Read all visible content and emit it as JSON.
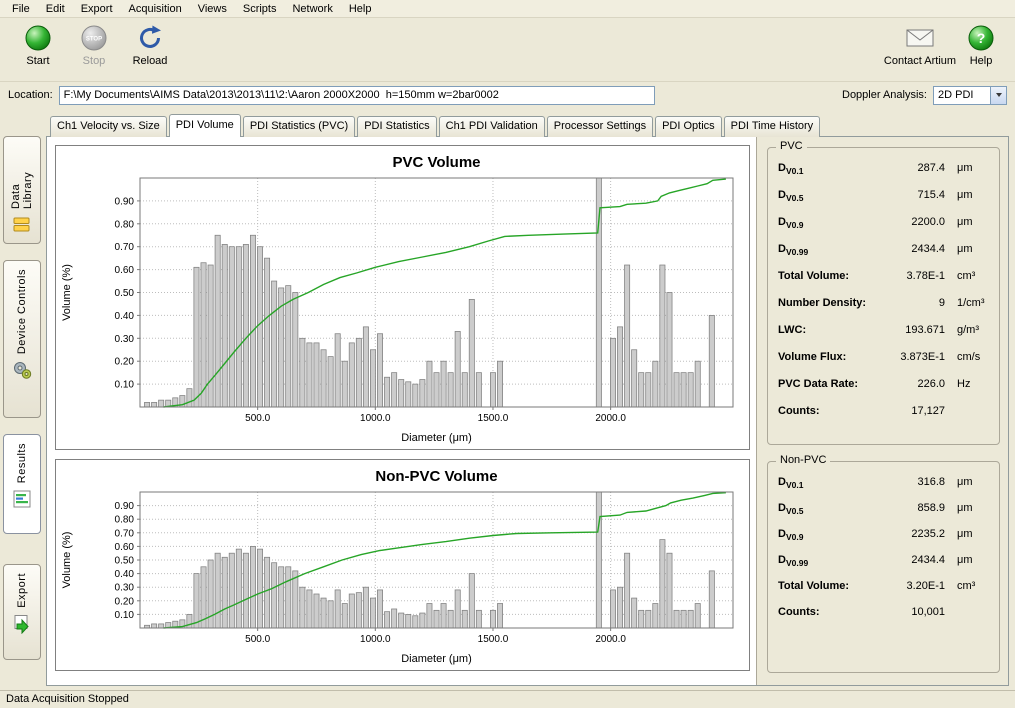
{
  "menu": {
    "items": [
      "File",
      "Edit",
      "Export",
      "Acquisition",
      "Views",
      "Scripts",
      "Network",
      "Help"
    ]
  },
  "toolbar": {
    "start_label": "Start",
    "stop_label": "Stop",
    "stop_icon_text": "STOP",
    "reload_label": "Reload",
    "contact_label": "Contact Artium",
    "help_label": "Help",
    "help_icon_text": "?"
  },
  "location": {
    "label": "Location:",
    "value": "F:\\My Documents\\AIMS Data\\2013\\2013\\11\\2:\\Aaron 2000X2000  h=150mm w=2bar0002"
  },
  "doppler": {
    "label": "Doppler Analysis:",
    "value": "2D PDI"
  },
  "side_tabs": [
    {
      "label": "Data Library"
    },
    {
      "label": "Device Controls"
    },
    {
      "label": "Results"
    },
    {
      "label": "Export"
    }
  ],
  "tabs": [
    "Ch1 Velocity vs. Size",
    "PDI Volume",
    "PDI Statistics (PVC)",
    "PDI Statistics",
    "Ch1 PDI Validation",
    "Processor Settings",
    "PDI Optics",
    "PDI Time History"
  ],
  "active_tab": "PDI Volume",
  "stats": {
    "pvc": {
      "title": "PVC",
      "rows": [
        {
          "main": "D",
          "sub": "V0.1",
          "value": "287.4",
          "unit": "μm"
        },
        {
          "main": "D",
          "sub": "V0.5",
          "value": "715.4",
          "unit": "μm"
        },
        {
          "main": "D",
          "sub": "V0.9",
          "value": "2200.0",
          "unit": "μm"
        },
        {
          "main": "D",
          "sub": "V0.99",
          "value": "2434.4",
          "unit": "μm"
        },
        {
          "main": "Total Volume:",
          "sub": "",
          "value": "3.78E-1",
          "unit": "cm³"
        },
        {
          "main": "Number Density:",
          "sub": "",
          "value": "9",
          "unit": "1/cm³"
        },
        {
          "main": "LWC:",
          "sub": "",
          "value": "193.671",
          "unit": "g/m³"
        },
        {
          "main": "Volume Flux:",
          "sub": "",
          "value": "3.873E-1",
          "unit": "cm/s"
        },
        {
          "main": "PVC Data Rate:",
          "sub": "",
          "value": "226.0",
          "unit": "Hz"
        },
        {
          "main": "Counts:",
          "sub": "",
          "value": "17,127",
          "unit": ""
        }
      ]
    },
    "nonpvc": {
      "title": "Non-PVC",
      "rows": [
        {
          "main": "D",
          "sub": "V0.1",
          "value": "316.8",
          "unit": "μm"
        },
        {
          "main": "D",
          "sub": "V0.5",
          "value": "858.9",
          "unit": "μm"
        },
        {
          "main": "D",
          "sub": "V0.9",
          "value": "2235.2",
          "unit": "μm"
        },
        {
          "main": "D",
          "sub": "V0.99",
          "value": "2434.4",
          "unit": "μm"
        },
        {
          "main": "Total Volume:",
          "sub": "",
          "value": "3.20E-1",
          "unit": "cm³"
        },
        {
          "main": "Counts:",
          "sub": "",
          "value": "10,001",
          "unit": ""
        }
      ]
    }
  },
  "status": "Data Acquisition Stopped",
  "chart_data": [
    {
      "type": "bar",
      "title": "PVC Volume",
      "xlabel": "Diameter (μm)",
      "ylabel": "Volume (%)",
      "xlim": [
        0,
        2520
      ],
      "ylim": [
        0,
        1.0
      ],
      "xticks": [
        [
          500,
          "500.0"
        ],
        [
          1000,
          "1000.0"
        ],
        [
          1500,
          "1500.0"
        ],
        [
          2000,
          "2000.0"
        ]
      ],
      "yticks": [
        [
          0.1,
          "0.10"
        ],
        [
          0.2,
          "0.20"
        ],
        [
          0.3,
          "0.30"
        ],
        [
          0.4,
          "0.40"
        ],
        [
          0.5,
          "0.50"
        ],
        [
          0.6,
          "0.60"
        ],
        [
          0.7,
          "0.70"
        ],
        [
          0.8,
          "0.80"
        ],
        [
          0.9,
          "0.90"
        ]
      ],
      "grid": true,
      "legend": "none",
      "bar_color": "#cccccc",
      "bar_edge": "#7f7f7f",
      "line_color": "#27a527",
      "bars": [
        [
          30,
          0.02
        ],
        [
          60,
          0.02
        ],
        [
          90,
          0.03
        ],
        [
          120,
          0.03
        ],
        [
          150,
          0.04
        ],
        [
          180,
          0.05
        ],
        [
          210,
          0.08
        ],
        [
          240,
          0.61
        ],
        [
          270,
          0.63
        ],
        [
          300,
          0.62
        ],
        [
          330,
          0.75
        ],
        [
          360,
          0.71
        ],
        [
          390,
          0.7
        ],
        [
          420,
          0.7
        ],
        [
          450,
          0.71
        ],
        [
          480,
          0.75
        ],
        [
          510,
          0.7
        ],
        [
          540,
          0.65
        ],
        [
          570,
          0.55
        ],
        [
          600,
          0.52
        ],
        [
          630,
          0.53
        ],
        [
          660,
          0.5
        ],
        [
          690,
          0.3
        ],
        [
          720,
          0.28
        ],
        [
          750,
          0.28
        ],
        [
          780,
          0.25
        ],
        [
          810,
          0.22
        ],
        [
          840,
          0.32
        ],
        [
          870,
          0.2
        ],
        [
          900,
          0.28
        ],
        [
          930,
          0.3
        ],
        [
          960,
          0.35
        ],
        [
          990,
          0.25
        ],
        [
          1020,
          0.32
        ],
        [
          1050,
          0.13
        ],
        [
          1080,
          0.15
        ],
        [
          1110,
          0.12
        ],
        [
          1140,
          0.11
        ],
        [
          1170,
          0.1
        ],
        [
          1200,
          0.12
        ],
        [
          1230,
          0.2
        ],
        [
          1260,
          0.15
        ],
        [
          1290,
          0.2
        ],
        [
          1320,
          0.15
        ],
        [
          1350,
          0.33
        ],
        [
          1380,
          0.15
        ],
        [
          1410,
          0.47
        ],
        [
          1440,
          0.15
        ],
        [
          1500,
          0.15
        ],
        [
          1530,
          0.2
        ],
        [
          1950,
          1.0
        ],
        [
          2010,
          0.3
        ],
        [
          2040,
          0.35
        ],
        [
          2070,
          0.62
        ],
        [
          2100,
          0.25
        ],
        [
          2130,
          0.15
        ],
        [
          2160,
          0.15
        ],
        [
          2190,
          0.2
        ],
        [
          2220,
          0.62
        ],
        [
          2250,
          0.5
        ],
        [
          2280,
          0.15
        ],
        [
          2310,
          0.15
        ],
        [
          2340,
          0.15
        ],
        [
          2370,
          0.2
        ],
        [
          2430,
          0.4
        ]
      ],
      "line": [
        [
          100,
          0.0
        ],
        [
          180,
          0.01
        ],
        [
          230,
          0.03
        ],
        [
          260,
          0.06
        ],
        [
          287,
          0.1
        ],
        [
          320,
          0.14
        ],
        [
          360,
          0.19
        ],
        [
          400,
          0.24
        ],
        [
          450,
          0.3
        ],
        [
          500,
          0.355
        ],
        [
          550,
          0.4
        ],
        [
          600,
          0.44
        ],
        [
          650,
          0.47
        ],
        [
          715,
          0.5
        ],
        [
          780,
          0.535
        ],
        [
          850,
          0.565
        ],
        [
          920,
          0.585
        ],
        [
          1000,
          0.61
        ],
        [
          1100,
          0.635
        ],
        [
          1200,
          0.655
        ],
        [
          1300,
          0.675
        ],
        [
          1400,
          0.7
        ],
        [
          1480,
          0.725
        ],
        [
          1550,
          0.745
        ],
        [
          1650,
          0.75
        ],
        [
          1800,
          0.755
        ],
        [
          1945,
          0.76
        ],
        [
          1955,
          0.87
        ],
        [
          2040,
          0.875
        ],
        [
          2070,
          0.885
        ],
        [
          2150,
          0.89
        ],
        [
          2200,
          0.9
        ],
        [
          2215,
          0.92
        ],
        [
          2250,
          0.935
        ],
        [
          2290,
          0.945
        ],
        [
          2330,
          0.955
        ],
        [
          2370,
          0.965
        ],
        [
          2410,
          0.975
        ],
        [
          2434,
          0.99
        ],
        [
          2490,
          0.995
        ]
      ]
    },
    {
      "type": "bar",
      "title": "Non-PVC Volume",
      "xlabel": "Diameter (μm)",
      "ylabel": "Volume (%)",
      "xlim": [
        0,
        2520
      ],
      "ylim": [
        0,
        1.0
      ],
      "xticks": [
        [
          500,
          "500.0"
        ],
        [
          1000,
          "1000.0"
        ],
        [
          1500,
          "1500.0"
        ],
        [
          2000,
          "2000.0"
        ]
      ],
      "yticks": [
        [
          0.1,
          "0.10"
        ],
        [
          0.2,
          "0.20"
        ],
        [
          0.3,
          "0.30"
        ],
        [
          0.4,
          "0.40"
        ],
        [
          0.5,
          "0.50"
        ],
        [
          0.6,
          "0.60"
        ],
        [
          0.7,
          "0.70"
        ],
        [
          0.8,
          "0.80"
        ],
        [
          0.9,
          "0.90"
        ]
      ],
      "grid": true,
      "legend": "none",
      "bar_color": "#cccccc",
      "bar_edge": "#7f7f7f",
      "line_color": "#27a527",
      "bars": [
        [
          30,
          0.02
        ],
        [
          60,
          0.03
        ],
        [
          90,
          0.03
        ],
        [
          120,
          0.04
        ],
        [
          150,
          0.05
        ],
        [
          180,
          0.06
        ],
        [
          210,
          0.1
        ],
        [
          240,
          0.4
        ],
        [
          270,
          0.45
        ],
        [
          300,
          0.5
        ],
        [
          330,
          0.55
        ],
        [
          360,
          0.52
        ],
        [
          390,
          0.55
        ],
        [
          420,
          0.58
        ],
        [
          450,
          0.55
        ],
        [
          480,
          0.6
        ],
        [
          510,
          0.58
        ],
        [
          540,
          0.52
        ],
        [
          570,
          0.48
        ],
        [
          600,
          0.45
        ],
        [
          630,
          0.45
        ],
        [
          660,
          0.42
        ],
        [
          690,
          0.3
        ],
        [
          720,
          0.28
        ],
        [
          750,
          0.25
        ],
        [
          780,
          0.22
        ],
        [
          810,
          0.2
        ],
        [
          840,
          0.28
        ],
        [
          870,
          0.18
        ],
        [
          900,
          0.25
        ],
        [
          930,
          0.26
        ],
        [
          960,
          0.3
        ],
        [
          990,
          0.22
        ],
        [
          1020,
          0.28
        ],
        [
          1050,
          0.12
        ],
        [
          1080,
          0.14
        ],
        [
          1110,
          0.11
        ],
        [
          1140,
          0.1
        ],
        [
          1170,
          0.09
        ],
        [
          1200,
          0.11
        ],
        [
          1230,
          0.18
        ],
        [
          1260,
          0.13
        ],
        [
          1290,
          0.18
        ],
        [
          1320,
          0.13
        ],
        [
          1350,
          0.28
        ],
        [
          1380,
          0.13
        ],
        [
          1410,
          0.4
        ],
        [
          1440,
          0.13
        ],
        [
          1500,
          0.13
        ],
        [
          1530,
          0.18
        ],
        [
          1950,
          1.0
        ],
        [
          2010,
          0.28
        ],
        [
          2040,
          0.3
        ],
        [
          2070,
          0.55
        ],
        [
          2100,
          0.22
        ],
        [
          2130,
          0.13
        ],
        [
          2160,
          0.13
        ],
        [
          2190,
          0.18
        ],
        [
          2220,
          0.65
        ],
        [
          2250,
          0.55
        ],
        [
          2280,
          0.13
        ],
        [
          2310,
          0.13
        ],
        [
          2340,
          0.13
        ],
        [
          2370,
          0.18
        ],
        [
          2430,
          0.42
        ]
      ],
      "line": [
        [
          100,
          0.0
        ],
        [
          180,
          0.01
        ],
        [
          240,
          0.04
        ],
        [
          280,
          0.07
        ],
        [
          317,
          0.1
        ],
        [
          360,
          0.14
        ],
        [
          400,
          0.17
        ],
        [
          450,
          0.21
        ],
        [
          500,
          0.25
        ],
        [
          560,
          0.29
        ],
        [
          620,
          0.34
        ],
        [
          700,
          0.4
        ],
        [
          780,
          0.45
        ],
        [
          859,
          0.5
        ],
        [
          940,
          0.54
        ],
        [
          1020,
          0.57
        ],
        [
          1100,
          0.59
        ],
        [
          1200,
          0.615
        ],
        [
          1300,
          0.635
        ],
        [
          1400,
          0.66
        ],
        [
          1500,
          0.68
        ],
        [
          1600,
          0.695
        ],
        [
          1750,
          0.7
        ],
        [
          1945,
          0.705
        ],
        [
          1955,
          0.82
        ],
        [
          2040,
          0.83
        ],
        [
          2070,
          0.85
        ],
        [
          2150,
          0.86
        ],
        [
          2235,
          0.9
        ],
        [
          2255,
          0.92
        ],
        [
          2300,
          0.94
        ],
        [
          2350,
          0.955
        ],
        [
          2400,
          0.975
        ],
        [
          2434,
          0.99
        ],
        [
          2490,
          0.995
        ]
      ]
    }
  ]
}
